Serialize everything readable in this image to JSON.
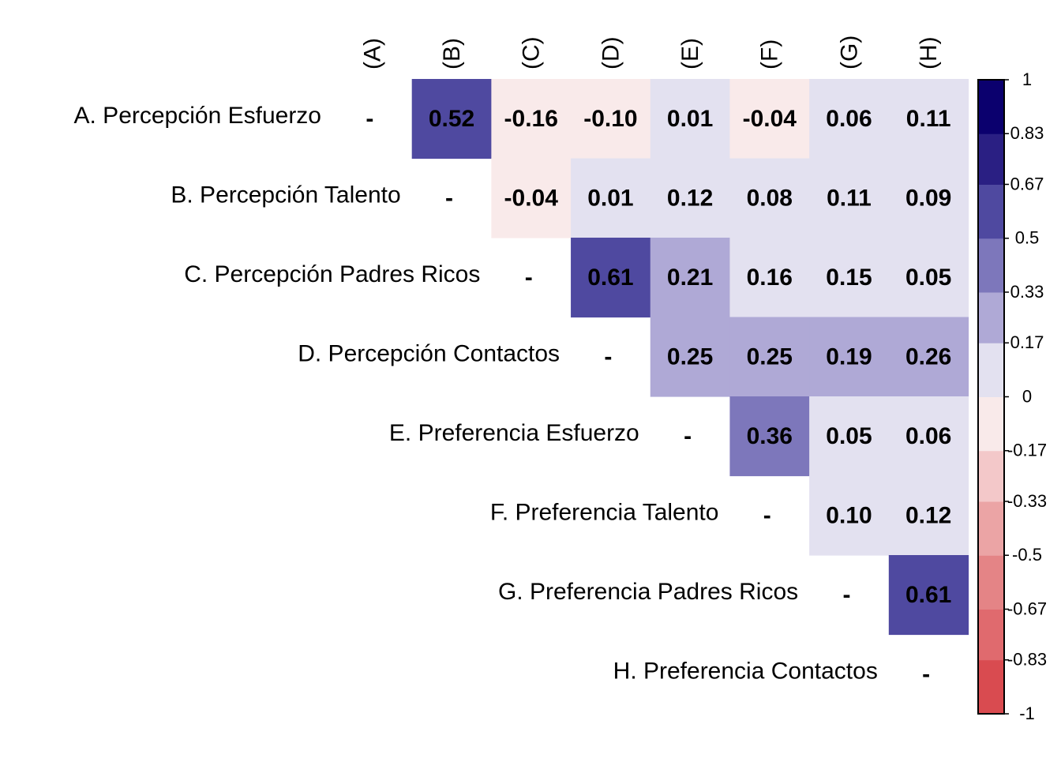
{
  "chart_data": {
    "type": "heatmap",
    "title": "",
    "variables": [
      "A. Percepción Esfuerzo",
      "B. Percepción Talento",
      "C. Percepción Padres Ricos",
      "D. Percepción Contactos",
      "E. Preferencia Esfuerzo",
      "F. Preferencia Talento",
      "G. Preferencia Padres Ricos",
      "H. Preferencia Contactos"
    ],
    "column_labels": [
      "(A)",
      "(B)",
      "(C)",
      "(D)",
      "(E)",
      "(F)",
      "(G)",
      "(H)"
    ],
    "diagonal_label": "-",
    "matrix": [
      [
        null,
        0.52,
        -0.16,
        -0.1,
        0.01,
        -0.04,
        0.06,
        0.11
      ],
      [
        null,
        null,
        -0.04,
        0.01,
        0.12,
        0.08,
        0.11,
        0.09
      ],
      [
        null,
        null,
        null,
        0.61,
        0.21,
        0.16,
        0.15,
        0.05
      ],
      [
        null,
        null,
        null,
        null,
        0.25,
        0.25,
        0.19,
        0.26
      ],
      [
        null,
        null,
        null,
        null,
        null,
        0.36,
        0.05,
        0.06
      ],
      [
        null,
        null,
        null,
        null,
        null,
        null,
        0.1,
        0.12
      ],
      [
        null,
        null,
        null,
        null,
        null,
        null,
        null,
        0.61
      ],
      [
        null,
        null,
        null,
        null,
        null,
        null,
        null,
        null
      ]
    ],
    "value_labels": [
      [
        null,
        "0.52",
        "-0.16",
        "-0.10",
        "0.01",
        "-0.04",
        "0.06",
        "0.11"
      ],
      [
        null,
        null,
        "-0.04",
        "0.01",
        "0.12",
        "0.08",
        "0.11",
        "0.09"
      ],
      [
        null,
        null,
        null,
        "0.61",
        "0.21",
        "0.16",
        "0.15",
        "0.05"
      ],
      [
        null,
        null,
        null,
        null,
        "0.25",
        "0.25",
        "0.19",
        "0.26"
      ],
      [
        null,
        null,
        null,
        null,
        null,
        "0.36",
        "0.05",
        "0.06"
      ],
      [
        null,
        null,
        null,
        null,
        null,
        null,
        "0.10",
        "0.12"
      ],
      [
        null,
        null,
        null,
        null,
        null,
        null,
        null,
        "0.61"
      ],
      [
        null,
        null,
        null,
        null,
        null,
        null,
        null,
        null
      ]
    ],
    "legend": {
      "type": "binned-colorbar",
      "placement": "right",
      "range": [
        -1,
        1
      ],
      "breaks": [
        -1,
        -0.83,
        -0.67,
        -0.5,
        -0.33,
        -0.17,
        0,
        0.17,
        0.33,
        0.5,
        0.67,
        0.83,
        1
      ],
      "tick_labels": [
        "-1",
        "-0.83",
        "-0.67",
        "-0.5",
        "-0.33",
        "-0.17",
        "0",
        "0.17",
        "0.33",
        "0.5",
        "0.67",
        "0.83",
        "1"
      ],
      "colors": [
        "#d94b50",
        "#e06a6e",
        "#e48486",
        "#eba4a5",
        "#f3c8c9",
        "#f9eaea",
        "#e3e1f0",
        "#afa9d6",
        "#7d77bb",
        "#4f49a0",
        "#2a1f83",
        "#0b006e"
      ]
    }
  }
}
